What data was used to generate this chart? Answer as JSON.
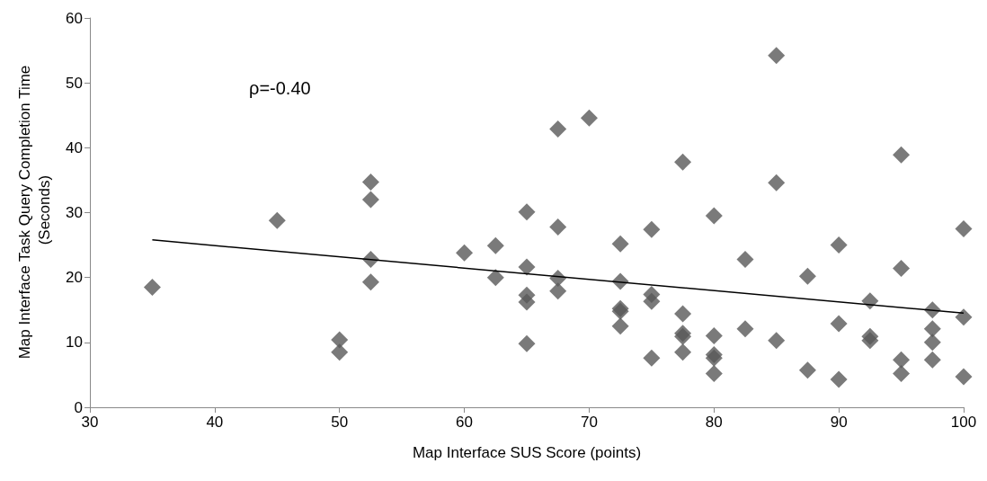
{
  "chart_data": {
    "type": "scatter",
    "xlabel": "Map Interface SUS Score (points)",
    "ylabel": "Map Interface Task Query Completion Time (Seconds)",
    "annotations": [
      "ρ=-0.40"
    ],
    "xlim": [
      30,
      100
    ],
    "xticks": [
      30,
      40,
      50,
      60,
      70,
      80,
      90,
      100
    ],
    "ylim": [
      0,
      60
    ],
    "yticks": [
      0,
      10,
      20,
      30,
      40,
      50,
      60
    ],
    "grid": false,
    "marker": "diamond",
    "series": [
      {
        "color": "#595959",
        "x": [
          35,
          45,
          50,
          50,
          52.5,
          52.5,
          52.5,
          52.5,
          60,
          62.5,
          62.5,
          65,
          65,
          65,
          65,
          65,
          67.5,
          67.5,
          67.5,
          67.5,
          70,
          72.5,
          72.5,
          72.5,
          72.5,
          72.5,
          75,
          75,
          75,
          75,
          77.5,
          77.5,
          77.5,
          77.5,
          77.5,
          80,
          80,
          80,
          80,
          80,
          82.5,
          82.5,
          85,
          85,
          85,
          87.5,
          87.5,
          90,
          90,
          90,
          92.5,
          92.5,
          92.5,
          95,
          95,
          95,
          95,
          97.5,
          97.5,
          97.5,
          97.5,
          100,
          100,
          100
        ],
        "values": [
          18.5,
          28.8,
          10.4,
          8.5,
          34.7,
          32,
          22.8,
          19.3,
          23.8,
          24.9,
          20,
          30.1,
          21.6,
          17.3,
          16.2,
          9.8,
          42.9,
          27.8,
          19.9,
          17.9,
          44.6,
          25.2,
          19.4,
          15.2,
          14.8,
          12.5,
          27.4,
          17.4,
          16.3,
          7.6,
          37.8,
          14.4,
          11.4,
          10.9,
          8.5,
          29.5,
          11,
          8.1,
          7.6,
          5.2,
          22.8,
          12.1,
          54.2,
          34.6,
          10.3,
          20.2,
          5.7,
          25,
          12.9,
          4.3,
          16.4,
          10.9,
          10.3,
          38.9,
          21.4,
          7.3,
          5.2,
          15,
          12.1,
          10,
          7.3,
          27.5,
          13.9,
          4.7
        ]
      },
      {
        "type": "line",
        "color": "#000000",
        "marker": "none",
        "x": [
          35,
          100
        ],
        "values": [
          25.8,
          14.5
        ]
      }
    ]
  }
}
